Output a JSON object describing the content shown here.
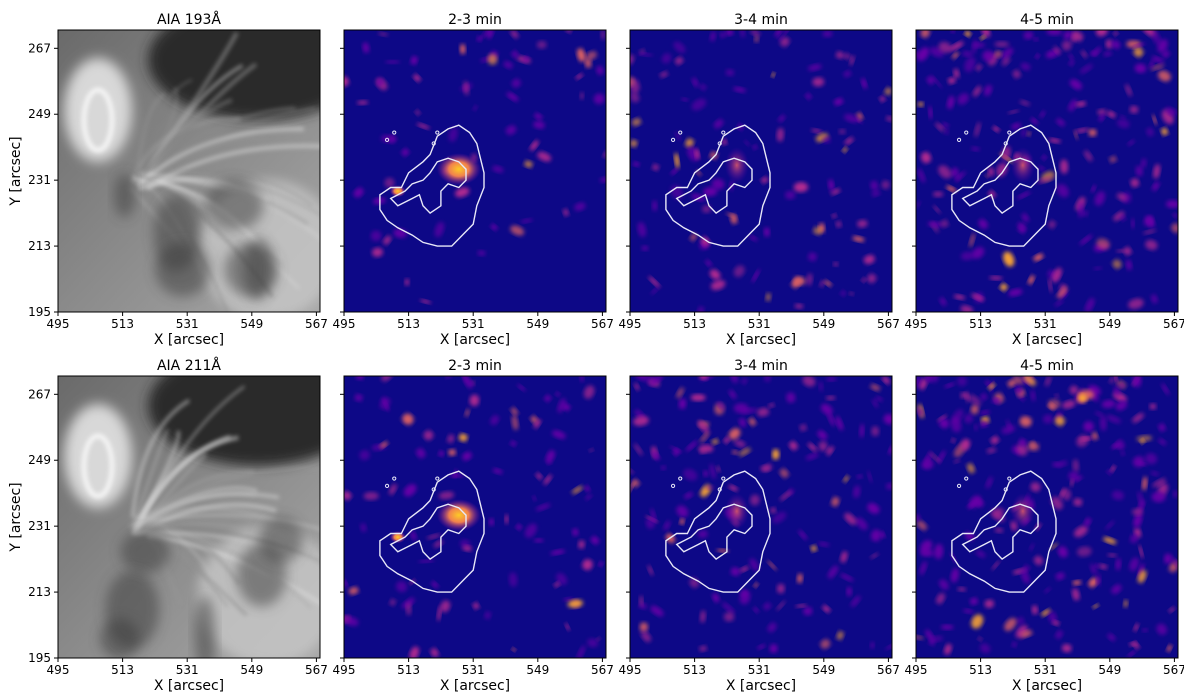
{
  "figure": {
    "panels": [
      {
        "row": 0,
        "col": 0,
        "kind": "grayscale",
        "title": "AIA 193Å"
      },
      {
        "row": 0,
        "col": 1,
        "kind": "heatmap",
        "title": "2-3 min"
      },
      {
        "row": 0,
        "col": 2,
        "kind": "heatmap",
        "title": "3-4 min"
      },
      {
        "row": 0,
        "col": 3,
        "kind": "heatmap",
        "title": "4-5 min"
      },
      {
        "row": 1,
        "col": 0,
        "kind": "grayscale",
        "title": "AIA 211Å"
      },
      {
        "row": 1,
        "col": 1,
        "kind": "heatmap",
        "title": "2-3 min"
      },
      {
        "row": 1,
        "col": 2,
        "kind": "heatmap",
        "title": "3-4 min"
      },
      {
        "row": 1,
        "col": 3,
        "kind": "heatmap",
        "title": "4-5 min"
      }
    ],
    "x_axis": {
      "label": "X [arcsec]",
      "ticks": [
        "495",
        "513",
        "531",
        "549",
        "567"
      ],
      "range": [
        495,
        568
      ]
    },
    "y_axis": {
      "label": "Y [arcsec]",
      "ticks": [
        "195",
        "213",
        "231",
        "249",
        "267"
      ],
      "range": [
        195,
        272
      ]
    },
    "colors": {
      "heatmap_background": "#0d0887",
      "heatmap_mid": "#9c179e",
      "heatmap_high": "#fdca26",
      "contour": "#e8e8f8"
    }
  }
}
